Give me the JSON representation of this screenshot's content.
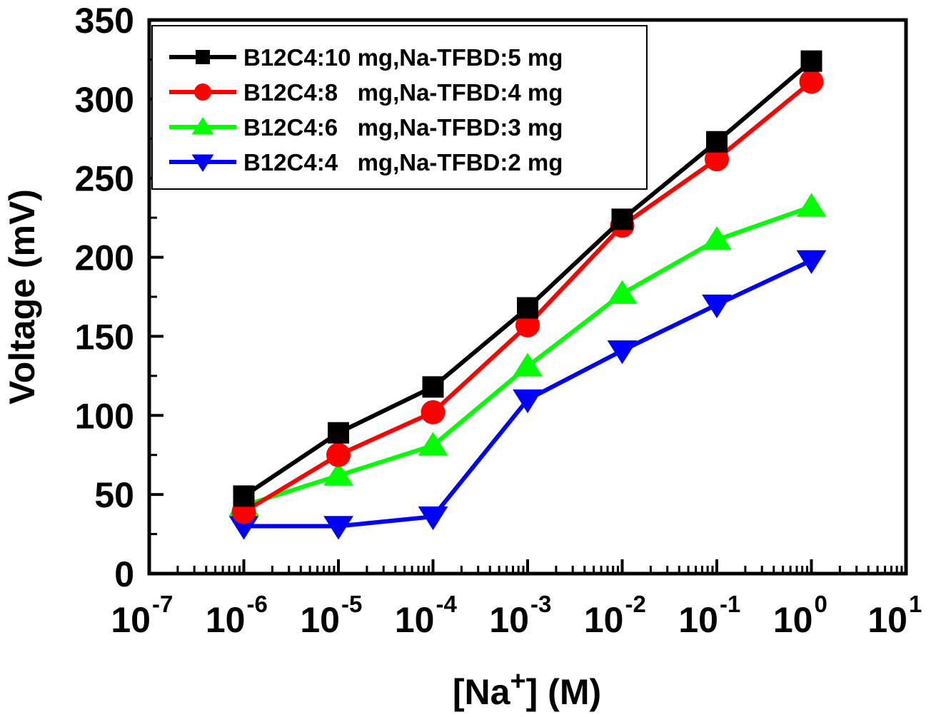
{
  "chart_data": {
    "type": "line",
    "x_scale": "log",
    "xlabel": {
      "prefix": "[Na",
      "sup": "+",
      "suffix": "] (M)"
    },
    "ylabel": "Voltage (mV)",
    "xlim_exponents": [
      -7,
      1
    ],
    "ylim": [
      0,
      350
    ],
    "x_tick_exponents": [
      -7,
      -6,
      -5,
      -4,
      -3,
      -2,
      -1,
      0,
      1
    ],
    "x_tick_labels": [
      {
        "base": "10",
        "exp": "-7"
      },
      {
        "base": "10",
        "exp": "-6"
      },
      {
        "base": "10",
        "exp": "-5"
      },
      {
        "base": "10",
        "exp": "-4"
      },
      {
        "base": "10",
        "exp": "-3"
      },
      {
        "base": "10",
        "exp": "-2"
      },
      {
        "base": "10",
        "exp": "-1"
      },
      {
        "base": "10",
        "exp": "0"
      },
      {
        "base": "10",
        "exp": "1"
      }
    ],
    "y_ticks": [
      0,
      50,
      100,
      150,
      200,
      250,
      300,
      350
    ],
    "y_tick_labels": [
      "0",
      "50",
      "100",
      "150",
      "200",
      "250",
      "300",
      "350"
    ],
    "legend_position": "top-left",
    "x_exponents": [
      -6,
      -5,
      -4,
      -3,
      -2,
      -1,
      0
    ],
    "series": [
      {
        "name": "B12C4:10 mg,Na-TFBD:5 mg",
        "color": "#000000",
        "marker": "square",
        "values": [
          49,
          89,
          118,
          168,
          224,
          273,
          324
        ]
      },
      {
        "name": "B12C4:8   mg,Na-TFBD:4 mg",
        "color": "#ff0000",
        "marker": "circle",
        "values": [
          39,
          75,
          102,
          157,
          220,
          262,
          311
        ]
      },
      {
        "name": "B12C4:6   mg,Na-TFBD:3 mg",
        "color": "#00ff00",
        "marker": "triangle-up",
        "values": [
          43,
          62,
          81,
          131,
          177,
          211,
          232
        ]
      },
      {
        "name": "B12C4:4   mg,Na-TFBD:2 mg",
        "color": "#0000ff",
        "marker": "triangle-down",
        "values": [
          30,
          30,
          36,
          110,
          141,
          170,
          198
        ]
      }
    ]
  }
}
